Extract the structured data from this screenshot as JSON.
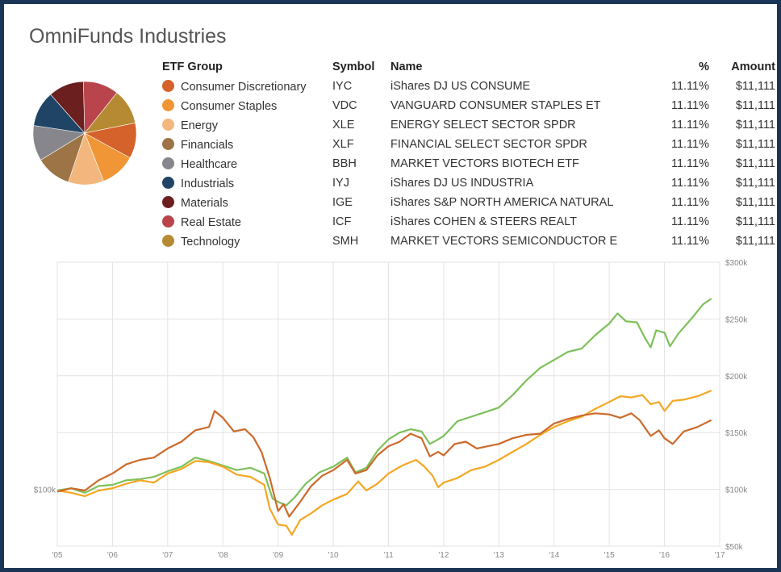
{
  "title": "OmniFunds Industries",
  "table": {
    "headers": {
      "group": "ETF Group",
      "symbol": "Symbol",
      "name": "Name",
      "pct": "%",
      "amount": "Amount"
    },
    "rows": [
      {
        "group": "Consumer Discretionary",
        "symbol": "IYC",
        "name": "iShares DJ US CONSUME",
        "pct": "11.11%",
        "amount": "$11,111",
        "color": "#d4622a"
      },
      {
        "group": "Consumer Staples",
        "symbol": "VDC",
        "name": "VANGUARD CONSUMER STAPLES ET",
        "pct": "11.11%",
        "amount": "$11,111",
        "color": "#f09637"
      },
      {
        "group": "Energy",
        "symbol": "XLE",
        "name": "ENERGY SELECT SECTOR SPDR",
        "pct": "11.11%",
        "amount": "$11,111",
        "color": "#f3b77e"
      },
      {
        "group": "Financials",
        "symbol": "XLF",
        "name": "FINANCIAL SELECT SECTOR SPDR",
        "pct": "11.11%",
        "amount": "$11,111",
        "color": "#9c7445"
      },
      {
        "group": "Healthcare",
        "symbol": "BBH",
        "name": "MARKET VECTORS BIOTECH ETF",
        "pct": "11.11%",
        "amount": "$11,111",
        "color": "#86868c"
      },
      {
        "group": "Industrials",
        "symbol": "IYJ",
        "name": "iShares DJ US INDUSTRIA",
        "pct": "11.11%",
        "amount": "$11,111",
        "color": "#1f4466"
      },
      {
        "group": "Materials",
        "symbol": "IGE",
        "name": "iShares S&P NORTH AMERICA NATURAL",
        "pct": "11.11%",
        "amount": "$11,111",
        "color": "#6b1f1f"
      },
      {
        "group": "Real Estate",
        "symbol": "ICF",
        "name": "iShares COHEN & STEERS REALT",
        "pct": "11.11%",
        "amount": "$11,111",
        "color": "#b9444b"
      },
      {
        "group": "Technology",
        "symbol": "SMH",
        "name": "MARKET VECTORS SEMICONDUCTOR E",
        "pct": "11.11%",
        "amount": "$11,111",
        "color": "#b68a32"
      }
    ]
  },
  "chart_data": [
    {
      "type": "pie",
      "categories": [
        "Consumer Discretionary",
        "Consumer Staples",
        "Energy",
        "Financials",
        "Healthcare",
        "Industrials",
        "Materials",
        "Real Estate",
        "Technology"
      ],
      "values": [
        11.11,
        11.11,
        11.11,
        11.11,
        11.11,
        11.11,
        11.11,
        11.11,
        11.11
      ],
      "colors": [
        "#d4622a",
        "#f09637",
        "#f3b77e",
        "#9c7445",
        "#86868c",
        "#1f4466",
        "#6b1f1f",
        "#b9444b",
        "#b68a32"
      ]
    },
    {
      "type": "line",
      "xlim": [
        2005,
        2017
      ],
      "ylim": [
        50000,
        300000
      ],
      "grid": true,
      "xticks": [
        2005,
        2006,
        2007,
        2008,
        2009,
        2010,
        2011,
        2012,
        2013,
        2014,
        2015,
        2016,
        2017
      ],
      "xtick_labels": [
        "'05",
        "'06",
        "'07",
        "'08",
        "'09",
        "'10",
        "'11",
        "'12",
        "'13",
        "'14",
        "'15",
        "'16",
        "'17"
      ],
      "yticks": [
        50000,
        100000,
        150000,
        200000,
        250000,
        300000
      ],
      "ytick_labels": [
        "$50k",
        "$100k",
        "$150k",
        "$200k",
        "$250k",
        "$300k"
      ],
      "left_axis_label": "$100k",
      "series": [
        {
          "color": "#7dc05a",
          "points": [
            [
              2005.0,
              99000
            ],
            [
              2005.25,
              101000
            ],
            [
              2005.5,
              97000
            ],
            [
              2005.75,
              103000
            ],
            [
              2006.0,
              104000
            ],
            [
              2006.25,
              108000
            ],
            [
              2006.5,
              109000
            ],
            [
              2006.75,
              111000
            ],
            [
              2007.0,
              116000
            ],
            [
              2007.25,
              120000
            ],
            [
              2007.5,
              128000
            ],
            [
              2007.75,
              125000
            ],
            [
              2008.0,
              121000
            ],
            [
              2008.25,
              117000
            ],
            [
              2008.5,
              119000
            ],
            [
              2008.75,
              114000
            ],
            [
              2008.9,
              92000
            ],
            [
              2009.0,
              89000
            ],
            [
              2009.15,
              86000
            ],
            [
              2009.3,
              93000
            ],
            [
              2009.5,
              105000
            ],
            [
              2009.75,
              115000
            ],
            [
              2010.0,
              120000
            ],
            [
              2010.25,
              128000
            ],
            [
              2010.4,
              115000
            ],
            [
              2010.6,
              119000
            ],
            [
              2010.8,
              134000
            ],
            [
              2011.0,
              144000
            ],
            [
              2011.2,
              150000
            ],
            [
              2011.4,
              153000
            ],
            [
              2011.6,
              151000
            ],
            [
              2011.75,
              140000
            ],
            [
              2011.9,
              144000
            ],
            [
              2012.0,
              147000
            ],
            [
              2012.25,
              160000
            ],
            [
              2012.5,
              164000
            ],
            [
              2012.75,
              168000
            ],
            [
              2013.0,
              172000
            ],
            [
              2013.25,
              183000
            ],
            [
              2013.5,
              196000
            ],
            [
              2013.75,
              207000
            ],
            [
              2014.0,
              214000
            ],
            [
              2014.25,
              221000
            ],
            [
              2014.5,
              224000
            ],
            [
              2014.75,
              236000
            ],
            [
              2015.0,
              246000
            ],
            [
              2015.15,
              255000
            ],
            [
              2015.3,
              248000
            ],
            [
              2015.5,
              247000
            ],
            [
              2015.65,
              233000
            ],
            [
              2015.75,
              225000
            ],
            [
              2015.85,
              240000
            ],
            [
              2016.0,
              238000
            ],
            [
              2016.1,
              226000
            ],
            [
              2016.25,
              237000
            ],
            [
              2016.5,
              251000
            ],
            [
              2016.7,
              263000
            ],
            [
              2016.85,
              268000
            ]
          ]
        },
        {
          "color": "#f5a623",
          "points": [
            [
              2005.0,
              99000
            ],
            [
              2005.25,
              97000
            ],
            [
              2005.5,
              94000
            ],
            [
              2005.75,
              99000
            ],
            [
              2006.0,
              101000
            ],
            [
              2006.25,
              105000
            ],
            [
              2006.5,
              108000
            ],
            [
              2006.75,
              106000
            ],
            [
              2007.0,
              114000
            ],
            [
              2007.25,
              118000
            ],
            [
              2007.5,
              125000
            ],
            [
              2007.75,
              124000
            ],
            [
              2008.0,
              120000
            ],
            [
              2008.25,
              113000
            ],
            [
              2008.5,
              111000
            ],
            [
              2008.75,
              104000
            ],
            [
              2008.85,
              83000
            ],
            [
              2009.0,
              69000
            ],
            [
              2009.15,
              68000
            ],
            [
              2009.25,
              60000
            ],
            [
              2009.4,
              73000
            ],
            [
              2009.6,
              79000
            ],
            [
              2009.8,
              86000
            ],
            [
              2010.0,
              91000
            ],
            [
              2010.25,
              96000
            ],
            [
              2010.45,
              107000
            ],
            [
              2010.6,
              99000
            ],
            [
              2010.8,
              105000
            ],
            [
              2011.0,
              114000
            ],
            [
              2011.25,
              121000
            ],
            [
              2011.5,
              126000
            ],
            [
              2011.65,
              120000
            ],
            [
              2011.8,
              112000
            ],
            [
              2011.9,
              102000
            ],
            [
              2012.0,
              106000
            ],
            [
              2012.25,
              110000
            ],
            [
              2012.5,
              117000
            ],
            [
              2012.75,
              120000
            ],
            [
              2013.0,
              126000
            ],
            [
              2013.25,
              133000
            ],
            [
              2013.5,
              140000
            ],
            [
              2013.75,
              148000
            ],
            [
              2014.0,
              155000
            ],
            [
              2014.25,
              160000
            ],
            [
              2014.5,
              164000
            ],
            [
              2014.75,
              171000
            ],
            [
              2015.0,
              177000
            ],
            [
              2015.2,
              182000
            ],
            [
              2015.4,
              181000
            ],
            [
              2015.6,
              183000
            ],
            [
              2015.75,
              175000
            ],
            [
              2015.9,
              177000
            ],
            [
              2016.0,
              169000
            ],
            [
              2016.15,
              178000
            ],
            [
              2016.35,
              179000
            ],
            [
              2016.6,
              182000
            ],
            [
              2016.85,
              187000
            ]
          ]
        },
        {
          "color": "#cc6a2a",
          "points": [
            [
              2005.0,
              98000
            ],
            [
              2005.25,
              101000
            ],
            [
              2005.5,
              99000
            ],
            [
              2005.75,
              108000
            ],
            [
              2006.0,
              114000
            ],
            [
              2006.25,
              122000
            ],
            [
              2006.5,
              126000
            ],
            [
              2006.75,
              128000
            ],
            [
              2007.0,
              136000
            ],
            [
              2007.25,
              142000
            ],
            [
              2007.5,
              152000
            ],
            [
              2007.75,
              155000
            ],
            [
              2007.85,
              169000
            ],
            [
              2008.0,
              163000
            ],
            [
              2008.2,
              151000
            ],
            [
              2008.4,
              153000
            ],
            [
              2008.55,
              146000
            ],
            [
              2008.7,
              133000
            ],
            [
              2008.85,
              110000
            ],
            [
              2009.0,
              81000
            ],
            [
              2009.1,
              87000
            ],
            [
              2009.2,
              76000
            ],
            [
              2009.4,
              89000
            ],
            [
              2009.6,
              103000
            ],
            [
              2009.8,
              112000
            ],
            [
              2010.0,
              117000
            ],
            [
              2010.25,
              126000
            ],
            [
              2010.4,
              114000
            ],
            [
              2010.6,
              117000
            ],
            [
              2010.8,
              130000
            ],
            [
              2011.0,
              138000
            ],
            [
              2011.2,
              142000
            ],
            [
              2011.4,
              149000
            ],
            [
              2011.6,
              145000
            ],
            [
              2011.75,
              129000
            ],
            [
              2011.9,
              133000
            ],
            [
              2012.0,
              130000
            ],
            [
              2012.2,
              140000
            ],
            [
              2012.4,
              142000
            ],
            [
              2012.6,
              136000
            ],
            [
              2012.8,
              138000
            ],
            [
              2013.0,
              140000
            ],
            [
              2013.25,
              145000
            ],
            [
              2013.5,
              148000
            ],
            [
              2013.75,
              149000
            ],
            [
              2014.0,
              158000
            ],
            [
              2014.25,
              162000
            ],
            [
              2014.5,
              165000
            ],
            [
              2014.75,
              167000
            ],
            [
              2015.0,
              166000
            ],
            [
              2015.2,
              163000
            ],
            [
              2015.4,
              167000
            ],
            [
              2015.55,
              161000
            ],
            [
              2015.75,
              147000
            ],
            [
              2015.9,
              152000
            ],
            [
              2016.0,
              145000
            ],
            [
              2016.15,
              140000
            ],
            [
              2016.35,
              151000
            ],
            [
              2016.6,
              155000
            ],
            [
              2016.85,
              161000
            ]
          ]
        }
      ]
    }
  ]
}
